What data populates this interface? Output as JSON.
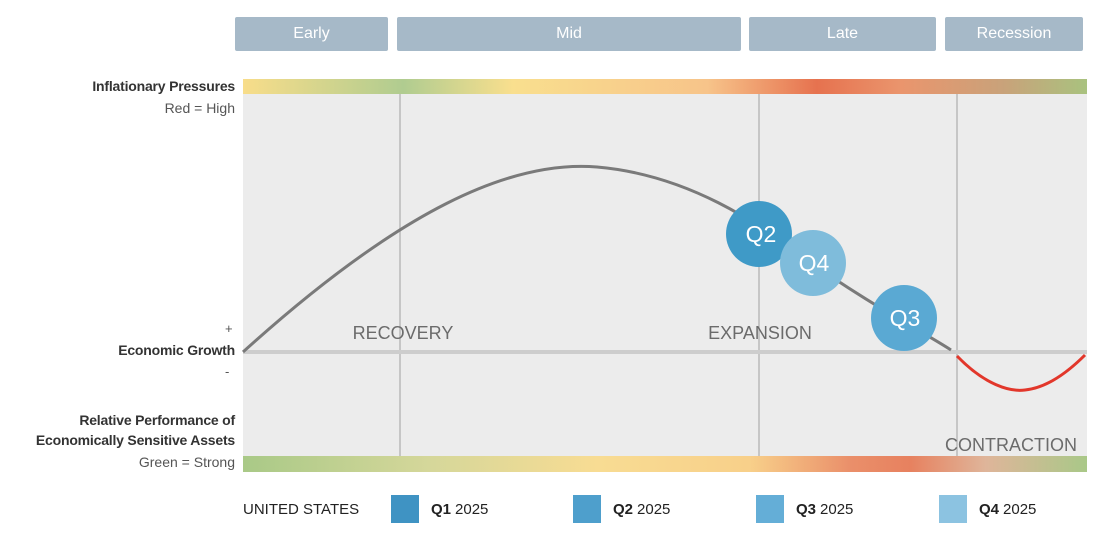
{
  "phases": [
    "Early",
    "Mid",
    "Late",
    "Recession"
  ],
  "left_labels": {
    "inflation_title": "Inflationary Pressures",
    "inflation_sub": "Red = High",
    "plus": "+",
    "growth": "Economic Growth",
    "minus": "-",
    "perf_line1": "Relative Performance of",
    "perf_line2": "Economically Sensitive Assets",
    "perf_sub": "Green = Strong"
  },
  "zones": [
    "RECOVERY",
    "EXPANSION",
    "CONTRACTION"
  ],
  "markers": [
    {
      "label": "Q2",
      "color": "#3f9ac7"
    },
    {
      "label": "Q4",
      "color": "#7fbcdb"
    },
    {
      "label": "Q3",
      "color": "#5aa9d3"
    }
  ],
  "curve_colors": {
    "positive": "#7a7a7a",
    "negative": "#e2372b"
  },
  "legend": {
    "country": "UNITED STATES",
    "items": [
      {
        "quarter": "Q1",
        "year": "2025",
        "color": "#3f93c3"
      },
      {
        "quarter": "Q2",
        "year": "2025",
        "color": "#4e9fcc"
      },
      {
        "quarter": "Q3",
        "year": "2025",
        "color": "#64aed7"
      },
      {
        "quarter": "Q4",
        "year": "2025",
        "color": "#8cc3e1"
      }
    ]
  }
}
